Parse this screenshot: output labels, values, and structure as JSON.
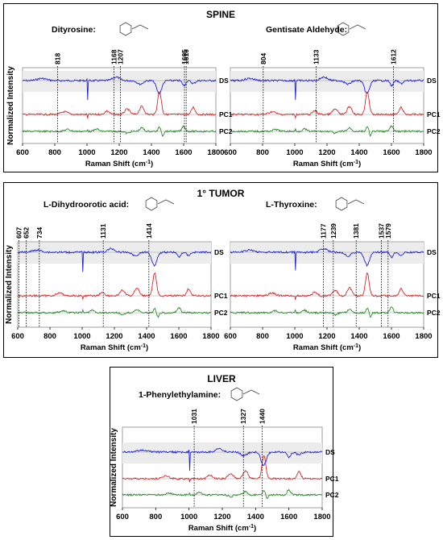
{
  "figure": {
    "ylabel": "Normalized Intensity",
    "xlabel": "Raman Shift (cm",
    "xlabel_sup": "-1",
    "xlabel_end": ")"
  },
  "chart_data": [
    {
      "type": "line",
      "panel": "SPINE",
      "compound": "Dityrosine:",
      "x_ticks": [
        600,
        800,
        1000,
        1200,
        1400,
        1600,
        1800
      ],
      "xlim": [
        600,
        1800
      ],
      "series": [
        {
          "name": "DS"
        },
        {
          "name": "PC1"
        },
        {
          "name": "PC2"
        }
      ],
      "peaks": [
        818,
        1168,
        1207,
        1605,
        1616
      ],
      "peak_labels": [
        "818",
        "1168",
        "1207",
        "1605",
        "1616"
      ]
    },
    {
      "type": "line",
      "panel": "SPINE",
      "compound": "Gentisate Aldehyde:",
      "x_ticks": [
        600,
        800,
        1000,
        1200,
        1400,
        1600,
        1800
      ],
      "xlim": [
        600,
        1800
      ],
      "series": [
        {
          "name": "DS"
        },
        {
          "name": "PC1"
        },
        {
          "name": "PC2"
        }
      ],
      "peaks": [
        804,
        1133,
        1612
      ],
      "peak_labels": [
        "804",
        "1133",
        "1612"
      ]
    },
    {
      "type": "line",
      "panel": "1° TUMOR",
      "compound": "L-Dihydroorotic acid:",
      "x_ticks": [
        600,
        800,
        1000,
        1200,
        1400,
        1600,
        1800
      ],
      "xlim": [
        600,
        1800
      ],
      "series": [
        {
          "name": "DS"
        },
        {
          "name": "PC1"
        },
        {
          "name": "PC2"
        }
      ],
      "peaks": [
        607,
        652,
        734,
        1131,
        1414
      ],
      "peak_labels": [
        "607",
        "652",
        "734",
        "1131",
        "1414"
      ]
    },
    {
      "type": "line",
      "panel": "1° TUMOR",
      "compound": "L-Thyroxine:",
      "x_ticks": [
        600,
        800,
        1000,
        1200,
        1400,
        1600,
        1800
      ],
      "xlim": [
        600,
        1800
      ],
      "series": [
        {
          "name": "DS"
        },
        {
          "name": "PC1"
        },
        {
          "name": "PC2"
        }
      ],
      "peaks": [
        1177,
        1239,
        1381,
        1537,
        1579
      ],
      "peak_labels": [
        "1177",
        "1239",
        "1381",
        "1537",
        "1579"
      ]
    },
    {
      "type": "line",
      "panel": "LIVER",
      "compound": "1-Phenylethylamine:",
      "x_ticks": [
        600,
        800,
        1000,
        1200,
        1400,
        1600,
        1800
      ],
      "xlim": [
        600,
        1800
      ],
      "series": [
        {
          "name": "DS"
        },
        {
          "name": "PC1"
        },
        {
          "name": "PC2"
        }
      ],
      "peaks": [
        1031,
        1327,
        1440
      ],
      "peak_labels": [
        "1031",
        "1327",
        "1440"
      ]
    }
  ],
  "colors": {
    "DS": "#2323d8",
    "PC1": "#d42a2a",
    "PC2": "#2e8a2e",
    "band": "#ececec",
    "dotted": "#000000"
  }
}
